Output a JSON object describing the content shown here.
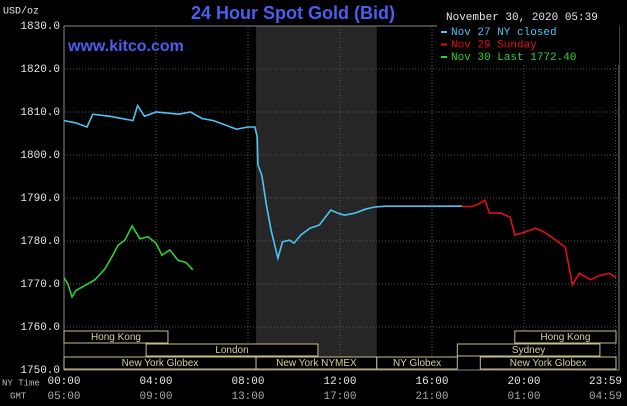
{
  "chart_data": {
    "type": "line",
    "title": "24 Hour Spot Gold (Bid)",
    "website": "www.kitco.com",
    "timestamp": "November 30, 2020 05:39",
    "y_label": "USD/oz",
    "x_label": "NY Time",
    "x2_label": "GMT",
    "xlim": [
      0,
      24
    ],
    "ylim": [
      1750,
      1830
    ],
    "xticks": [
      {
        "value": 0,
        "label": "00:00"
      },
      {
        "value": 4,
        "label": "04:00"
      },
      {
        "value": 8,
        "label": "08:00"
      },
      {
        "value": 12,
        "label": "12:00"
      },
      {
        "value": 16,
        "label": "16:00"
      },
      {
        "value": 20,
        "label": "20:00"
      },
      {
        "value": 23.98,
        "label": "23:59"
      }
    ],
    "x2_tick_labels": [
      "05:00",
      "09:00",
      "13:00",
      "17:00",
      "21:00",
      "01:00",
      "04:59"
    ],
    "yticks": [
      {
        "value": 1750,
        "label": "1750.0"
      },
      {
        "value": 1760,
        "label": "1760.0"
      },
      {
        "value": 1770,
        "label": "1770.0"
      },
      {
        "value": 1780,
        "label": "1780.0"
      },
      {
        "value": 1790,
        "label": "1790.0"
      },
      {
        "value": 1800,
        "label": "1800.0"
      },
      {
        "value": 1810,
        "label": "1810.0"
      },
      {
        "value": 1820,
        "label": "1820.0"
      },
      {
        "value": 1830,
        "label": "1830.0"
      }
    ],
    "grid": true,
    "legend": "top-right",
    "series": [
      {
        "name": "Nov 27 NY closed",
        "color": "#4cc4f4",
        "x": [
          0,
          0.5,
          1,
          1.25,
          2,
          3,
          3.2,
          3.5,
          4,
          5,
          5.5,
          6,
          6.5,
          7,
          7.5,
          8,
          8.3,
          8.4,
          8.43,
          8.6,
          8.8,
          9,
          9.3,
          9.5,
          9.8,
          10,
          10.3,
          10.7,
          11.1,
          11.6,
          11.9,
          12.2,
          12.65,
          13.1,
          13.5,
          14,
          17.3
        ],
        "values": [
          1808,
          1807.5,
          1806.5,
          1809.5,
          1809,
          1808,
          1811.5,
          1809,
          1810,
          1809.5,
          1810,
          1808.5,
          1808,
          1807,
          1806,
          1806.5,
          1806.5,
          1804.2,
          1797.7,
          1795.3,
          1788.4,
          1782.6,
          1776,
          1779.8,
          1780.2,
          1779.5,
          1781.4,
          1783,
          1783.7,
          1787.2,
          1786.5,
          1786,
          1786.5,
          1787.4,
          1787.9,
          1788.1,
          1788.1
        ]
      },
      {
        "name": "Nov 29 Sunday",
        "color": "#e01010",
        "x": [
          17.3,
          17.7,
          18,
          18.3,
          18.5,
          19,
          19.4,
          19.6,
          20,
          20.5,
          20.9,
          21.3,
          21.8,
          22.1,
          22.4,
          22.9,
          23.3,
          23.7,
          24
        ],
        "values": [
          1788,
          1788,
          1788.5,
          1789.5,
          1786.5,
          1786.5,
          1785.5,
          1781.4,
          1782,
          1783,
          1782,
          1780.5,
          1778.5,
          1769.8,
          1772.5,
          1771,
          1772,
          1772.5,
          1771.5
        ]
      },
      {
        "name": "Nov 30 Last 1772.40",
        "color": "#30d030",
        "x": [
          0,
          0.17,
          0.35,
          0.52,
          0.87,
          1.35,
          1.78,
          2.1,
          2.35,
          2.65,
          2.96,
          3.3,
          3.65,
          4,
          4.26,
          4.6,
          4.96,
          5.3,
          5.6
        ],
        "values": [
          1771.4,
          1770,
          1767,
          1768.5,
          1769.5,
          1771,
          1773.5,
          1776.5,
          1779,
          1780.2,
          1783.5,
          1780.5,
          1781,
          1779.5,
          1776.7,
          1777.9,
          1775.5,
          1775,
          1773.3
        ]
      }
    ],
    "sessions": [
      {
        "name": "Hong Kong",
        "row": 1,
        "start": 0,
        "end": 4.52
      },
      {
        "name": "Hong Kong",
        "row": 1,
        "start": 19.6,
        "end": 24
      },
      {
        "name": "London",
        "row": 2,
        "start": 3.57,
        "end": 11.04
      },
      {
        "name": "Sydney",
        "row": 2,
        "start": 17.1,
        "end": 23.3
      },
      {
        "name": "New York Globex",
        "row": 3,
        "start": 0,
        "end": 8.35
      },
      {
        "name": "New York NYMEX",
        "row": 3,
        "start": 8.35,
        "end": 13.6,
        "shaded": true
      },
      {
        "name": "NY Globex",
        "row": 3,
        "start": 13.6,
        "end": 17.1
      },
      {
        "name": "New York Globex",
        "row": 3,
        "start": 18.1,
        "end": 24
      }
    ]
  }
}
